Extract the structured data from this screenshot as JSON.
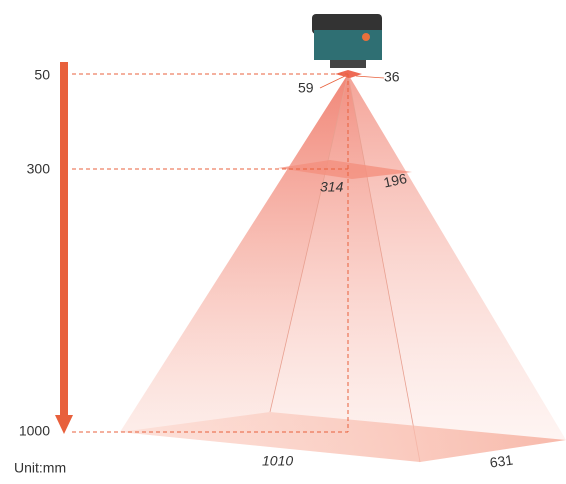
{
  "distances": [
    "50",
    "300",
    "1000"
  ],
  "near_field": {
    "width": "59",
    "height": "36"
  },
  "mid_field": {
    "width": "314",
    "height": "196"
  },
  "far_field": {
    "width": "1010",
    "height": "631"
  },
  "unit": "Unit:mm"
}
